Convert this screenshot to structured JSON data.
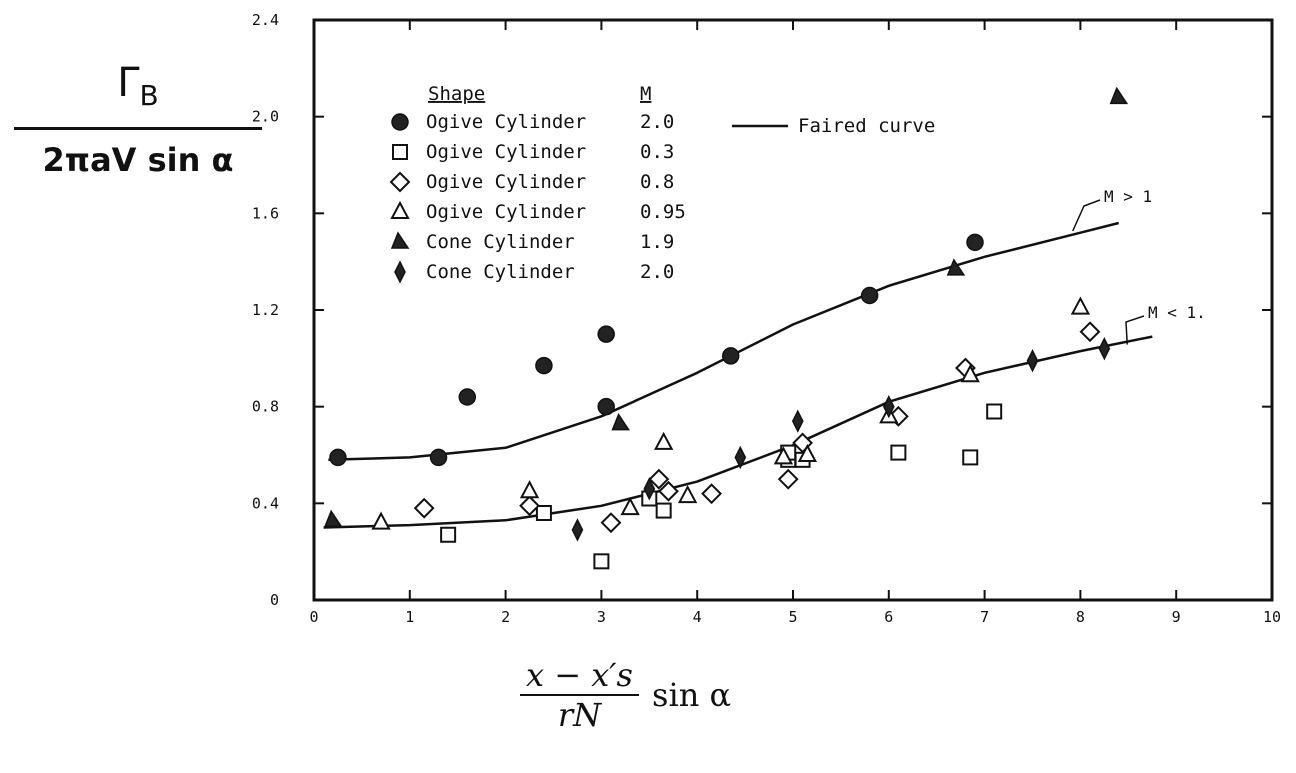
{
  "chart_data": {
    "type": "scatter",
    "ylabel_numerator": "Γ",
    "ylabel_numerator_sub": "B",
    "ylabel_denominator": "2πaV sin α",
    "xlabel_numerator": "x − x′s",
    "xlabel_denominator": "rN",
    "xlabel_suffix": "sin α",
    "xlim": [
      0,
      10
    ],
    "ylim": [
      0,
      2.4
    ],
    "xticks": [
      "0",
      "1",
      "2",
      "3",
      "4",
      "5",
      "6",
      "7",
      "8",
      "9",
      "10"
    ],
    "yticks": [
      "0",
      "0.4",
      "0.8",
      "1.2",
      "1.6",
      "2.0",
      "2.4"
    ],
    "legend_position": "top-left",
    "legend": {
      "shape_header": "Shape",
      "mach_header": "M",
      "faired_label": "Faired curve"
    },
    "curve_labels": [
      "M > 1",
      "M < 1."
    ],
    "curves": [
      {
        "name": "M > 1",
        "points": [
          [
            0.15,
            0.58
          ],
          [
            1,
            0.59
          ],
          [
            2,
            0.63
          ],
          [
            3,
            0.76
          ],
          [
            4,
            0.94
          ],
          [
            5,
            1.14
          ],
          [
            6,
            1.3
          ],
          [
            7,
            1.42
          ],
          [
            8,
            1.52
          ],
          [
            8.4,
            1.56
          ]
        ]
      },
      {
        "name": "M < 1.",
        "points": [
          [
            0.1,
            0.3
          ],
          [
            1,
            0.31
          ],
          [
            2,
            0.33
          ],
          [
            3,
            0.39
          ],
          [
            4,
            0.49
          ],
          [
            5,
            0.64
          ],
          [
            6,
            0.82
          ],
          [
            7,
            0.94
          ],
          [
            8,
            1.03
          ],
          [
            8.75,
            1.09
          ]
        ]
      }
    ],
    "series": [
      {
        "shape": "Ogive Cylinder",
        "mach": "2.0",
        "marker": "filled-circle",
        "points": [
          [
            0.25,
            0.59
          ],
          [
            1.3,
            0.59
          ],
          [
            1.6,
            0.84
          ],
          [
            2.4,
            0.97
          ],
          [
            3.05,
            1.1
          ],
          [
            3.05,
            0.8
          ],
          [
            4.35,
            1.01
          ],
          [
            5.8,
            1.26
          ],
          [
            6.9,
            1.48
          ]
        ]
      },
      {
        "shape": "Ogive Cylinder",
        "mach": "0.3",
        "marker": "open-square",
        "points": [
          [
            1.4,
            0.27
          ],
          [
            2.4,
            0.36
          ],
          [
            3.0,
            0.16
          ],
          [
            3.5,
            0.42
          ],
          [
            3.65,
            0.37
          ],
          [
            4.95,
            0.58
          ],
          [
            5.1,
            0.58
          ],
          [
            6.1,
            0.61
          ],
          [
            6.85,
            0.59
          ],
          [
            7.1,
            0.78
          ],
          [
            4.95,
            0.61
          ]
        ]
      },
      {
        "shape": "Ogive Cylinder",
        "mach": "0.8",
        "marker": "open-diamond",
        "points": [
          [
            1.15,
            0.38
          ],
          [
            2.25,
            0.39
          ],
          [
            3.1,
            0.32
          ],
          [
            3.6,
            0.5
          ],
          [
            3.7,
            0.45
          ],
          [
            4.15,
            0.44
          ],
          [
            4.95,
            0.5
          ],
          [
            5.1,
            0.65
          ],
          [
            6.1,
            0.76
          ],
          [
            6.8,
            0.96
          ],
          [
            8.1,
            1.11
          ]
        ]
      },
      {
        "shape": "Ogive Cylinder",
        "mach": "0.95",
        "marker": "open-triangle",
        "points": [
          [
            0.7,
            0.32
          ],
          [
            2.25,
            0.45
          ],
          [
            3.3,
            0.38
          ],
          [
            3.65,
            0.65
          ],
          [
            3.9,
            0.43
          ],
          [
            4.9,
            0.59
          ],
          [
            5.15,
            0.6
          ],
          [
            6.0,
            0.76
          ],
          [
            6.85,
            0.93
          ],
          [
            8.0,
            1.21
          ]
        ]
      },
      {
        "shape": "Cone Cylinder",
        "mach": "1.9",
        "marker": "filled-triangle",
        "points": [
          [
            0.2,
            0.33
          ],
          [
            3.2,
            0.73
          ],
          [
            6.7,
            1.37
          ],
          [
            8.4,
            2.08
          ]
        ]
      },
      {
        "shape": "Cone Cylinder",
        "mach": "2.0",
        "marker": "filled-diamond",
        "points": [
          [
            2.75,
            0.29
          ],
          [
            3.5,
            0.46
          ],
          [
            4.45,
            0.59
          ],
          [
            5.05,
            0.74
          ],
          [
            6.0,
            0.8
          ],
          [
            7.5,
            0.99
          ],
          [
            8.25,
            1.04
          ]
        ]
      }
    ]
  }
}
